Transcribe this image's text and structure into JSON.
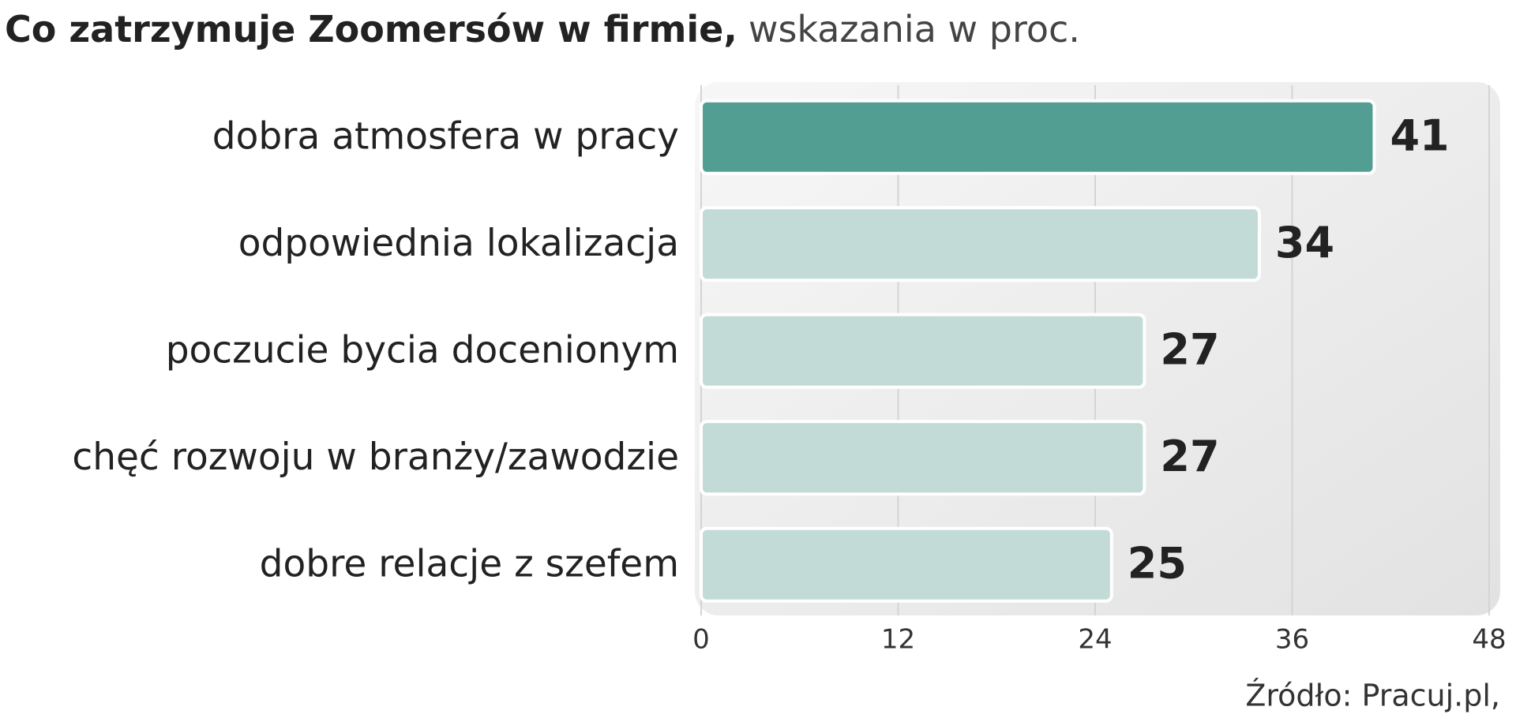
{
  "chart_data": {
    "type": "hbar",
    "title": "Co zatrzymuje Zoomersów w firmie,",
    "subtitle": "wskazania w proc.",
    "source": "Źródło: Pracuj.pl,",
    "categories": [
      "dobra atmosfera w pracy",
      "odpowiednia lokalizacja",
      "poczucie bycia docenionym",
      "chęć rozwoju w branży/zawodzie",
      "dobre relacje z szefem"
    ],
    "values": [
      41,
      34,
      27,
      27,
      25
    ],
    "colors": [
      "#529e92",
      "#c2dbd6",
      "#c2dbd6",
      "#c2dbd6",
      "#c2dbd6"
    ],
    "xlim": [
      0,
      48
    ],
    "xticks": [
      0,
      12,
      24,
      36,
      48
    ],
    "grid": true
  }
}
